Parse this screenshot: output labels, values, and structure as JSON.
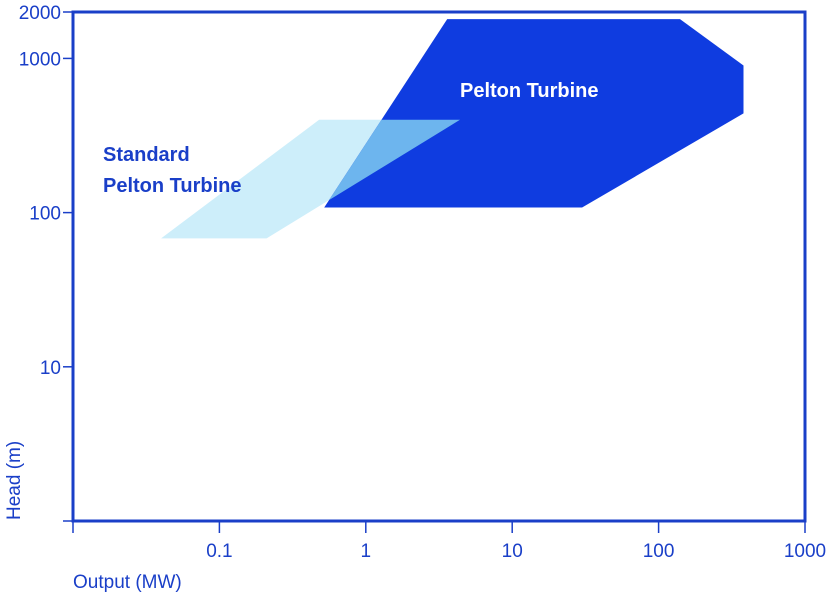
{
  "chart_data": {
    "type": "area",
    "title": "",
    "xlabel": "Output (MW)",
    "ylabel": "Head (m)",
    "x_scale": "log",
    "y_scale": "log",
    "xlim": [
      0.01,
      1000
    ],
    "ylim": [
      1,
      2000
    ],
    "x_ticks": [
      {
        "value": 0.1,
        "label": "0.1"
      },
      {
        "value": 1,
        "label": "1"
      },
      {
        "value": 10,
        "label": "10"
      },
      {
        "value": 100,
        "label": "100"
      },
      {
        "value": 1000,
        "label": "1000"
      }
    ],
    "y_ticks": [
      {
        "value": 10,
        "label": "10"
      },
      {
        "value": 100,
        "label": "100"
      },
      {
        "value": 1000,
        "label": "1000"
      },
      {
        "value": 2000,
        "label": "2000"
      }
    ],
    "grid": false,
    "colors": {
      "axis": "#1a3fc8",
      "pelton": "#0f3ce0",
      "standard_pelton": "#cdeefa",
      "overlap": "#6db5ee"
    },
    "series": [
      {
        "name": "Pelton Turbine",
        "color": "#0f3ce0",
        "polygon": [
          {
            "x": 3.6,
            "y": 1800
          },
          {
            "x": 140,
            "y": 1800
          },
          {
            "x": 380,
            "y": 900
          },
          {
            "x": 380,
            "y": 440
          },
          {
            "x": 30,
            "y": 108
          },
          {
            "x": 0.52,
            "y": 108
          }
        ]
      },
      {
        "name": "Standard Pelton Turbine",
        "label_lines": [
          "Standard",
          "Pelton Turbine"
        ],
        "color": "#cdeefa",
        "polygon": [
          {
            "x": 0.48,
            "y": 400
          },
          {
            "x": 4.4,
            "y": 400
          },
          {
            "x": 0.21,
            "y": 68
          },
          {
            "x": 0.04,
            "y": 68
          }
        ]
      }
    ]
  }
}
